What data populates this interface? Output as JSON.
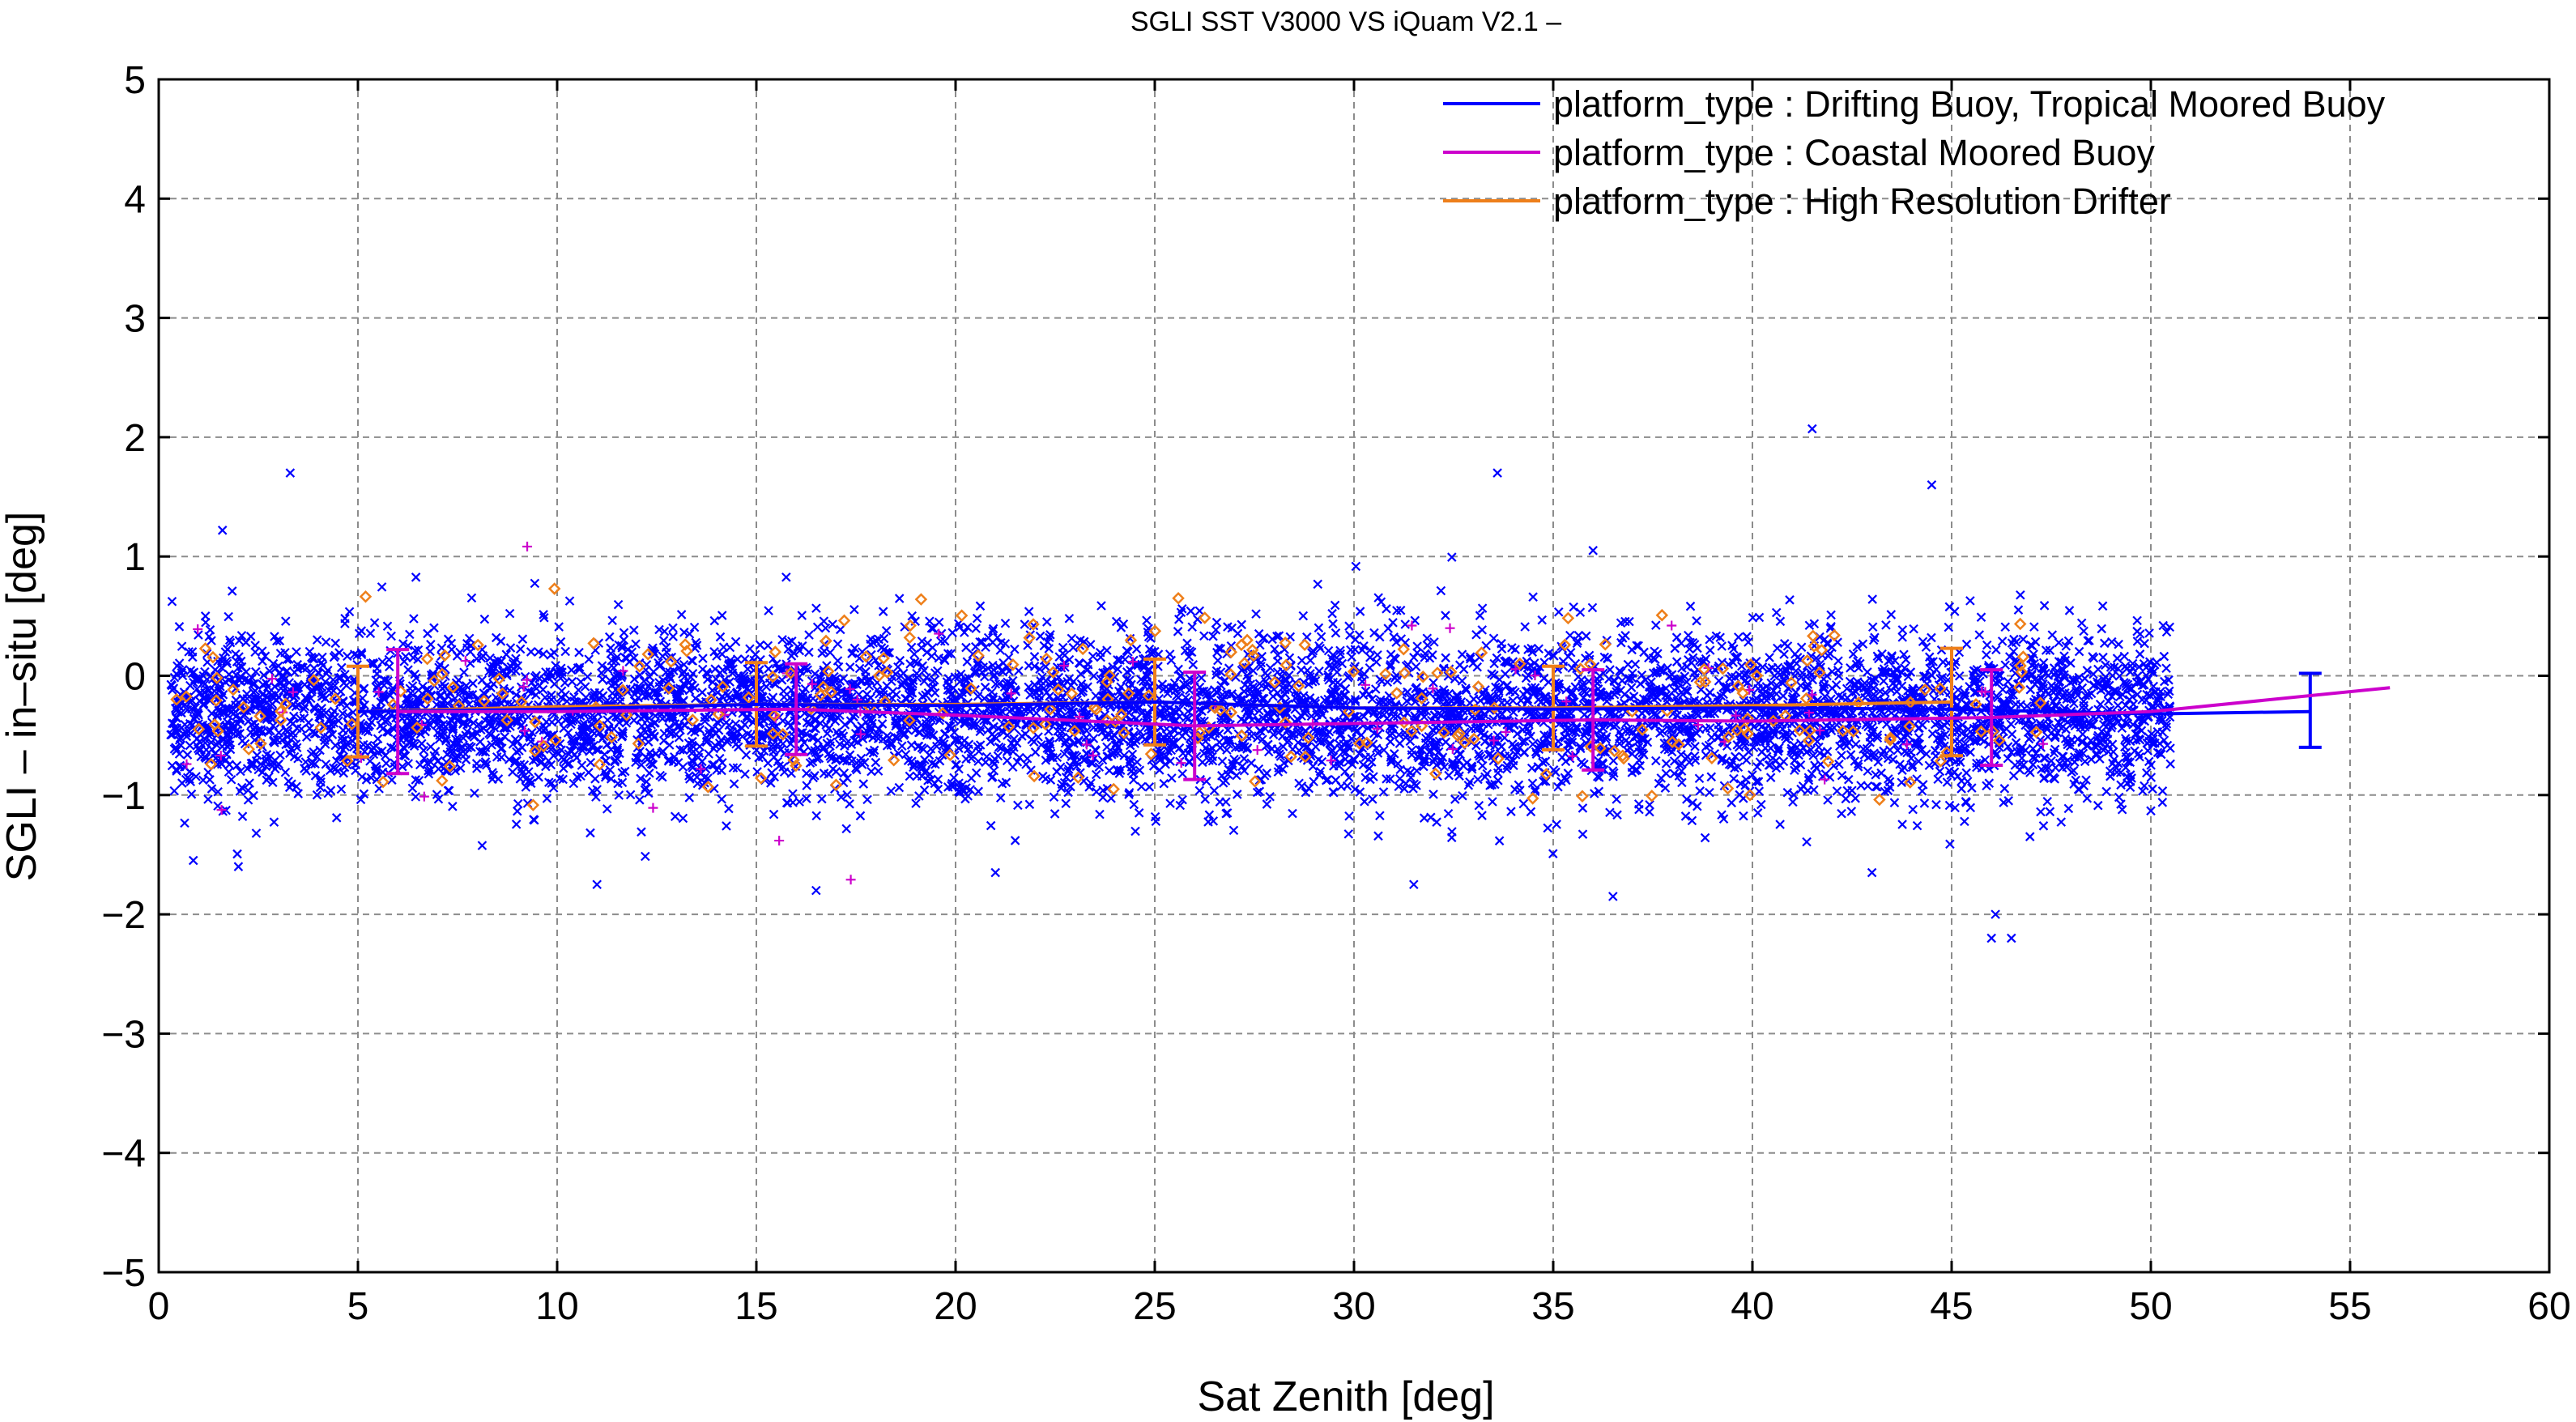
{
  "chart_data": {
    "type": "scatter",
    "title": "SGLI SST V3000 VS iQuam V2.1  –",
    "xlabel": "Sat Zenith [deg]",
    "ylabel": "SGLI – in–situ [deg]",
    "xlim": [
      0,
      60
    ],
    "ylim": [
      -5,
      5
    ],
    "x_ticks": [
      0,
      5,
      10,
      15,
      20,
      25,
      30,
      35,
      40,
      45,
      50,
      55,
      60
    ],
    "y_ticks": [
      5,
      4,
      3,
      2,
      1,
      0,
      -1,
      -2,
      -3,
      -4,
      -5
    ],
    "y_tick_labels": [
      "5",
      "4",
      "3",
      "2",
      "1",
      "0",
      "−1",
      "−2",
      "−3",
      "−4",
      "−5"
    ],
    "grid": true,
    "legend_position": "top-right",
    "series": [
      {
        "name": "platform_type : Drifting Buoy, Tropical Moored Buoy",
        "color": "#0000ff",
        "marker": "x",
        "scatter_x_range": [
          0.3,
          50.5
        ],
        "scatter_y_center": -0.33,
        "scatter_y_spread": 0.35,
        "outliers": [
          [
            3.3,
            1.7
          ],
          [
            1.6,
            1.22
          ],
          [
            41.5,
            2.07
          ],
          [
            44.5,
            1.6
          ],
          [
            33.6,
            1.7
          ],
          [
            36,
            1.05
          ],
          [
            16.5,
            -1.8
          ],
          [
            46,
            -2.2
          ],
          [
            46.5,
            -2.2
          ],
          [
            46.1,
            -2.0
          ],
          [
            31.5,
            -1.75
          ],
          [
            36.5,
            -1.85
          ],
          [
            43,
            -1.65
          ],
          [
            2,
            -1.6
          ],
          [
            11,
            -1.75
          ],
          [
            21,
            -1.65
          ]
        ],
        "mean_line": {
          "x": [
            5,
            10,
            15,
            20,
            25,
            30,
            35,
            40,
            45,
            50,
            54
          ],
          "y": [
            -0.3,
            -0.28,
            -0.24,
            -0.25,
            -0.22,
            -0.27,
            -0.28,
            -0.27,
            -0.28,
            -0.32,
            -0.3
          ]
        },
        "error_bars": [
          {
            "x": 54,
            "y": -0.29,
            "err": 0.31
          }
        ]
      },
      {
        "name": "platform_type : Coastal Moored Buoy",
        "color": "#cc00cc",
        "marker": "+",
        "mean_line": {
          "x": [
            6,
            10,
            16,
            20,
            26,
            30,
            36,
            40,
            46,
            50,
            56
          ],
          "y": [
            -0.3,
            -0.3,
            -0.28,
            -0.33,
            -0.42,
            -0.4,
            -0.37,
            -0.38,
            -0.35,
            -0.3,
            -0.1
          ]
        },
        "error_bars": [
          {
            "x": 6,
            "y": -0.3,
            "err": 0.52
          },
          {
            "x": 16,
            "y": -0.28,
            "err": 0.38
          },
          {
            "x": 26,
            "y": -0.42,
            "err": 0.45
          },
          {
            "x": 36,
            "y": -0.37,
            "err": 0.42
          },
          {
            "x": 46,
            "y": -0.35,
            "err": 0.4
          }
        ]
      },
      {
        "name": "platform_type : High Resolution Drifter",
        "color": "#ee7f1a",
        "marker": "diamond",
        "mean_line": {
          "x": [
            5,
            10,
            15,
            20,
            25,
            30,
            35,
            40,
            45
          ],
          "y": [
            -0.3,
            -0.26,
            -0.24,
            -0.24,
            -0.22,
            -0.27,
            -0.27,
            -0.25,
            -0.22
          ]
        },
        "error_bars": [
          {
            "x": 5,
            "y": -0.3,
            "err": 0.38
          },
          {
            "x": 15,
            "y": -0.24,
            "err": 0.35
          },
          {
            "x": 25,
            "y": -0.22,
            "err": 0.36
          },
          {
            "x": 35,
            "y": -0.27,
            "err": 0.35
          },
          {
            "x": 45,
            "y": -0.22,
            "err": 0.45
          }
        ]
      }
    ]
  }
}
